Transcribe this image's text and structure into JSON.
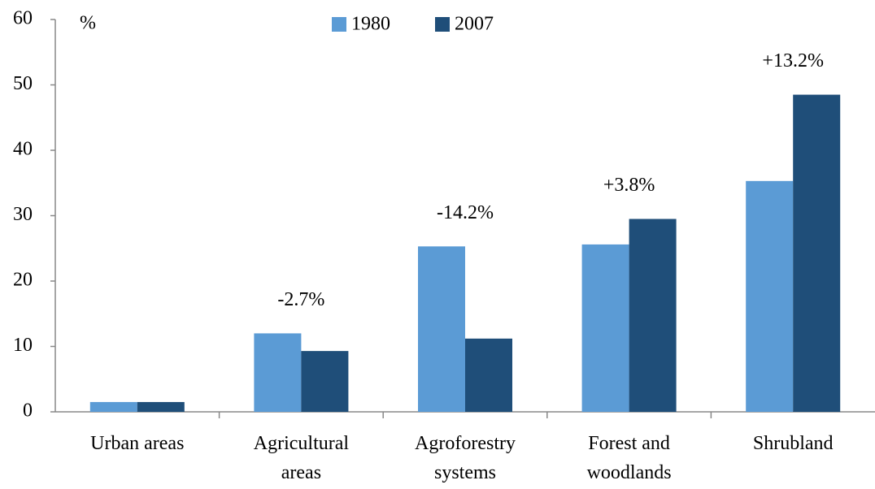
{
  "chart_data": {
    "type": "bar",
    "y_label": "%",
    "categories": [
      "Urban areas",
      "Agricultural\nareas",
      "Agroforestry\nsystems",
      "Forest and\nwoodlands",
      "Shrubland"
    ],
    "series": [
      {
        "name": "1980",
        "color": "#5b9bd5",
        "values": [
          1.5,
          12,
          25.3,
          25.6,
          35.3
        ]
      },
      {
        "name": "2007",
        "color": "#1f4e79",
        "values": [
          1.5,
          9.3,
          11.2,
          29.5,
          48.5
        ]
      }
    ],
    "annotations": [
      null,
      "-2.7%",
      "-14.2%",
      "+3.8%",
      "+13.2%"
    ],
    "ylim": [
      0,
      60
    ],
    "yticks": [
      0,
      10,
      20,
      30,
      40,
      50,
      60
    ],
    "legend": "top"
  }
}
